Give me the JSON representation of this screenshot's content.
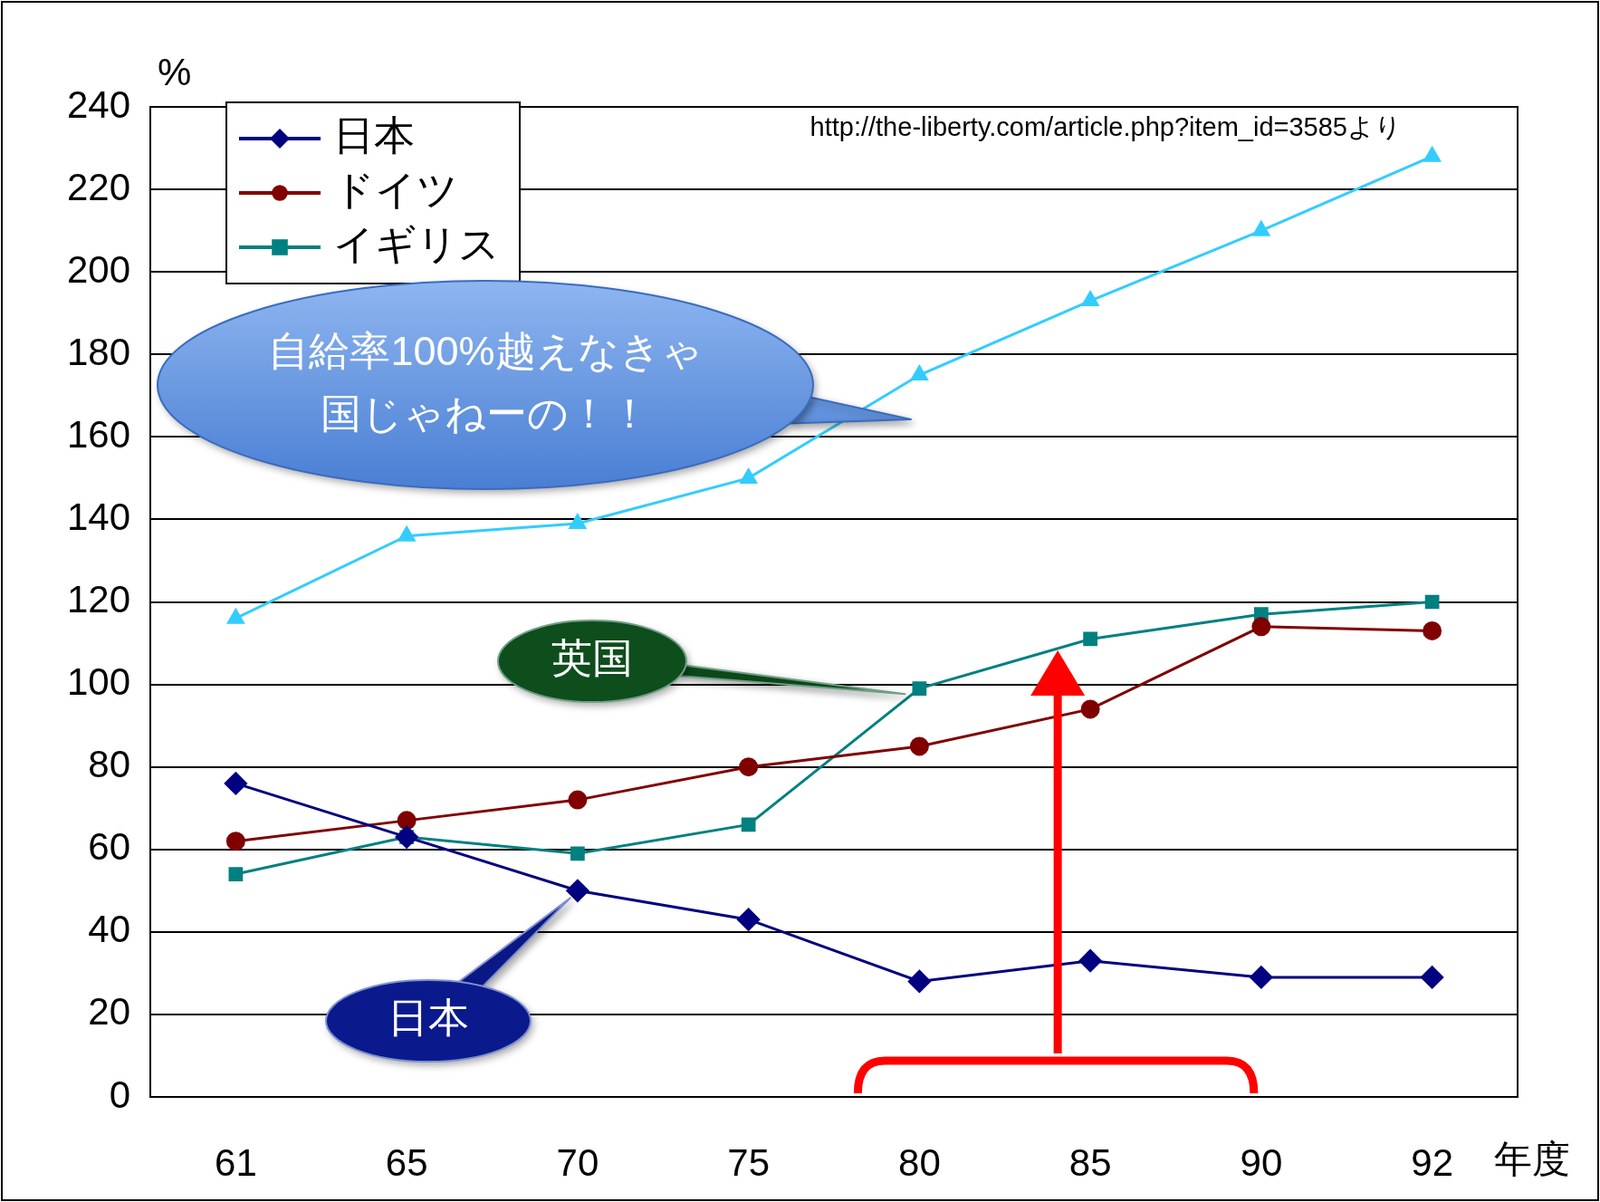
{
  "chart_data": {
    "type": "line",
    "x_label": "年度",
    "y_label": "%",
    "categories": [
      "61",
      "65",
      "70",
      "75",
      "80",
      "85",
      "90",
      "92"
    ],
    "ylim": [
      0,
      240
    ],
    "yticks": [
      0,
      20,
      40,
      60,
      80,
      100,
      120,
      140,
      160,
      180,
      200,
      220,
      240
    ],
    "grid": true,
    "legend": "upper left",
    "series": [
      {
        "name": "日本",
        "color": "#000080",
        "marker": "diamond",
        "values": [
          76,
          63,
          50,
          43,
          28,
          33,
          29,
          29
        ]
      },
      {
        "name": "ドイツ",
        "color": "#800000",
        "marker": "circle",
        "values": [
          62,
          67,
          72,
          80,
          85,
          94,
          114,
          113
        ]
      },
      {
        "name": "イギリス",
        "color": "#008080",
        "marker": "square",
        "values": [
          54,
          63,
          59,
          66,
          99,
          111,
          117,
          120
        ]
      },
      {
        "color": "#33ccff",
        "marker": "triangle",
        "values": [
          116,
          136,
          139,
          150,
          175,
          193,
          210,
          228
        ]
      }
    ],
    "annotations": [
      "自給率100%越えなきゃ\n国じゃねーの！！",
      "英国",
      "日本",
      "http://the-liberty.com/article.php?item_id=3585より"
    ]
  }
}
